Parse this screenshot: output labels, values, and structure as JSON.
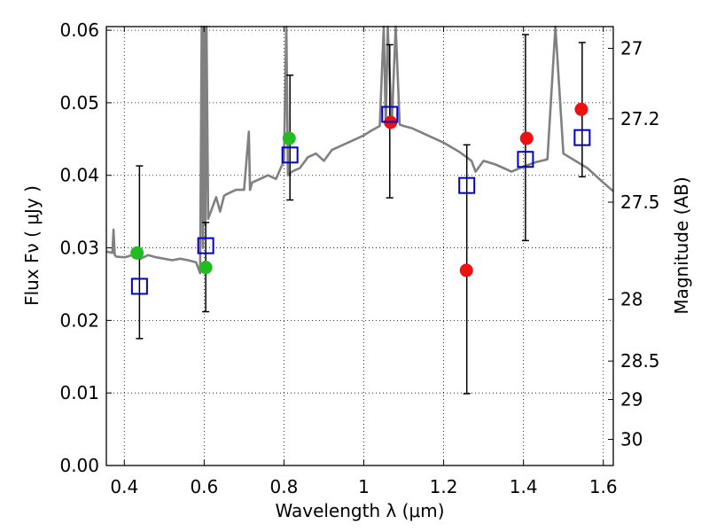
{
  "chart_data": {
    "type": "scatter",
    "xlabel": "Wavelength  λ (μm)",
    "ylabel": "Flux  Fν  ( μJy )",
    "ylabel_right": "Magnitude (AB)",
    "xlim": [
      0.355,
      1.625
    ],
    "ylim": [
      0,
      0.0605
    ],
    "grid": true,
    "x_ticks": [
      0.4,
      0.6,
      0.8,
      1,
      1.2,
      1.4,
      1.6
    ],
    "x_tick_labels": [
      "0.4",
      "0.6",
      "0.8",
      "1",
      "1.2",
      "1.4",
      "1.6"
    ],
    "y_ticks": [
      0,
      0.01,
      0.02,
      0.03,
      0.04,
      0.05,
      0.06
    ],
    "y_tick_labels": [
      "0.00",
      "0.01",
      "0.02",
      "0.03",
      "0.04",
      "0.05",
      "0.06"
    ],
    "right_ticks": [
      {
        "label": "27",
        "flux": 0.0575
      },
      {
        "label": "27.2",
        "flux": 0.0478
      },
      {
        "label": "27.5",
        "flux": 0.0363
      },
      {
        "label": "28",
        "flux": 0.0229
      },
      {
        "label": "28.5",
        "flux": 0.0144
      },
      {
        "label": "29",
        "flux": 0.0091
      },
      {
        "label": "30",
        "flux": 0.0036
      }
    ],
    "series": [
      {
        "marker": "circle",
        "color": "#22bb22",
        "x": [
          0.432,
          0.604,
          0.813
        ],
        "y": [
          0.0293,
          0.0273,
          0.0451
        ]
      },
      {
        "marker": "circle",
        "color": "#ee1111",
        "x": [
          1.067,
          1.257,
          1.408,
          1.545
        ],
        "y": [
          0.0473,
          0.0269,
          0.0451,
          0.0491
        ]
      },
      {
        "marker": "open-square",
        "color": "#0000cc",
        "x": [
          0.438,
          0.604,
          0.815,
          1.065,
          1.258,
          1.405,
          1.547
        ],
        "y": [
          0.0247,
          0.0303,
          0.0428,
          0.0484,
          0.0386,
          0.0422,
          0.0452
        ],
        "err_low": [
          0.0175,
          0.0212,
          0.0366,
          0.0369,
          0.0099,
          0.031,
          0.0398
        ],
        "err_high": [
          0.0413,
          0.0335,
          0.0538,
          0.058,
          0.0442,
          0.0594,
          0.0583
        ]
      }
    ],
    "spectrum": {
      "color": "#808080",
      "x": [
        0.355,
        0.37,
        0.373,
        0.376,
        0.38,
        0.4,
        0.42,
        0.44,
        0.46,
        0.48,
        0.5,
        0.52,
        0.54,
        0.56,
        0.58,
        0.59,
        0.594,
        0.597,
        0.6,
        0.603,
        0.606,
        0.61,
        0.62,
        0.63,
        0.64,
        0.65,
        0.66,
        0.68,
        0.7,
        0.712,
        0.715,
        0.72,
        0.74,
        0.76,
        0.78,
        0.8,
        0.806,
        0.81,
        0.82,
        0.84,
        0.86,
        0.88,
        0.9,
        0.92,
        0.94,
        0.96,
        0.98,
        1.0,
        1.02,
        1.04,
        1.05,
        1.055,
        1.06,
        1.07,
        1.08,
        1.09,
        1.1,
        1.12,
        1.14,
        1.16,
        1.2,
        1.24,
        1.27,
        1.28,
        1.3,
        1.33,
        1.35,
        1.37,
        1.4,
        1.43,
        1.46,
        1.48,
        1.5,
        1.53,
        1.56,
        1.58,
        1.6,
        1.625
      ],
      "y": [
        0.0295,
        0.0293,
        0.0325,
        0.029,
        0.0288,
        0.0287,
        0.029,
        0.0285,
        0.029,
        0.0287,
        0.0285,
        0.0283,
        0.0285,
        0.0283,
        0.028,
        0.0265,
        0.0605,
        0.03,
        0.0605,
        0.0332,
        0.0605,
        0.034,
        0.0355,
        0.037,
        0.035,
        0.0372,
        0.0375,
        0.038,
        0.038,
        0.046,
        0.038,
        0.039,
        0.0395,
        0.04,
        0.0395,
        0.042,
        0.0605,
        0.04,
        0.0405,
        0.041,
        0.0425,
        0.043,
        0.042,
        0.0435,
        0.044,
        0.0445,
        0.045,
        0.0455,
        0.0462,
        0.0468,
        0.0605,
        0.047,
        0.0605,
        0.047,
        0.0605,
        0.047,
        0.0468,
        0.0465,
        0.046,
        0.0455,
        0.0445,
        0.0432,
        0.042,
        0.0405,
        0.042,
        0.0415,
        0.041,
        0.0405,
        0.0412,
        0.0418,
        0.0422,
        0.0605,
        0.043,
        0.042,
        0.041,
        0.04,
        0.039,
        0.0378
      ]
    }
  }
}
